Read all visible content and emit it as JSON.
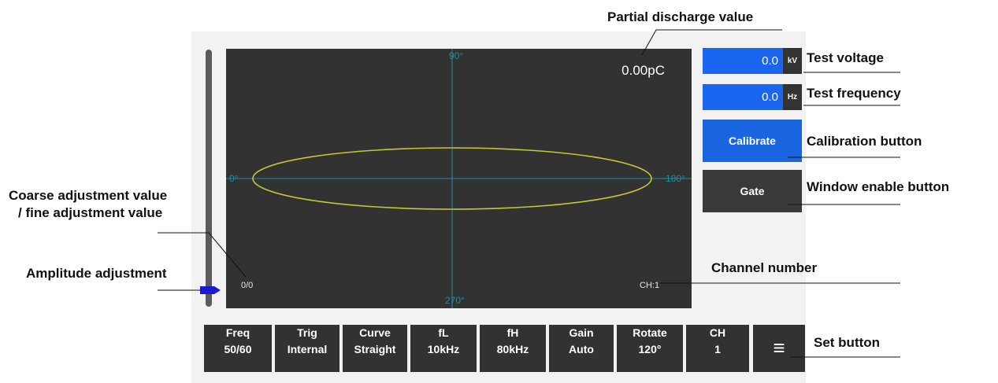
{
  "callouts": {
    "partial_discharge": "Partial discharge value",
    "test_voltage": "Test voltage",
    "test_frequency": "Test frequency",
    "calibration": "Calibration button",
    "window_enable": "Window enable button",
    "coarse_fine_line1": "Coarse adjustment value",
    "coarse_fine_line2": "/ fine adjustment value",
    "amplitude": "Amplitude adjustment",
    "channel_number": "Channel number",
    "set_button": "Set button"
  },
  "scope": {
    "pd_value": "0.00pC",
    "adjust_value": "0/0",
    "channel": "CH:1",
    "axis": {
      "top": "90°",
      "left": "0°",
      "right": "180°",
      "bottom": "270°"
    }
  },
  "fields": {
    "voltage": {
      "value": "0.0",
      "unit": "kV"
    },
    "frequency": {
      "value": "0.0",
      "unit": "Hz"
    }
  },
  "side_buttons": {
    "calibrate": "Calibrate",
    "gate": "Gate"
  },
  "bottom_buttons": [
    {
      "label": "Freq",
      "value": "50/60"
    },
    {
      "label": "Trig",
      "value": "Internal"
    },
    {
      "label": "Curve",
      "value": "Straight"
    },
    {
      "label": "fL",
      "value": "10kHz"
    },
    {
      "label": "fH",
      "value": "80kHz"
    },
    {
      "label": "Gain",
      "value": "Auto"
    },
    {
      "label": "Rotate",
      "value": "120°"
    },
    {
      "label": "CH",
      "value": "1"
    }
  ],
  "menu_icon": "hamburger-icon",
  "colors": {
    "screen": "#323232",
    "field_blue": "#1a66f0",
    "calibrate_blue": "#1a66e0",
    "gate_gray": "#3a3a3a",
    "ellipse": "#c8c832",
    "axis": "#1f8fa6",
    "handle": "#1a1ad6"
  }
}
